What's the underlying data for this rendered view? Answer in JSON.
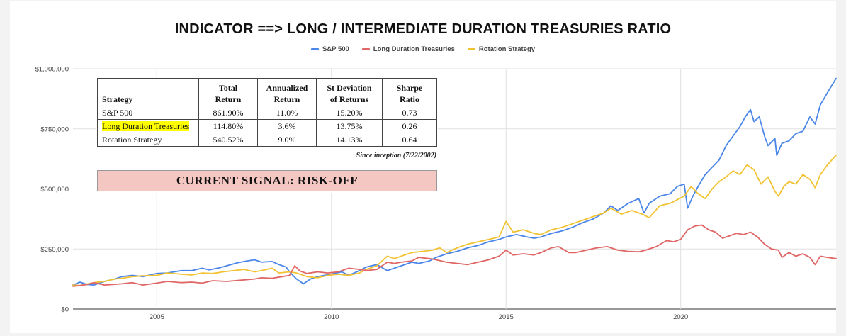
{
  "chart_data": {
    "type": "line",
    "title": "INDICATOR ==> LONG / INTERMEDIATE DURATION TREASURIES RATIO",
    "xlabel": "",
    "ylabel": "",
    "xlim": [
      2002.6,
      2024.45
    ],
    "ylim": [
      0,
      1000000
    ],
    "x_ticks": [
      2005,
      2010,
      2015,
      2020
    ],
    "y_ticks": [
      0,
      250000,
      500000,
      750000,
      1000000
    ],
    "y_tick_labels": [
      "$0",
      "$250,000",
      "$500,000",
      "$750,000",
      "$1,000,000"
    ],
    "grid": true,
    "legend_position": "top-center",
    "series": [
      {
        "name": "S&P 500",
        "color": "#4a86e8",
        "points": [
          [
            2002.6,
            100000
          ],
          [
            2002.8,
            112000
          ],
          [
            2003.0,
            102000
          ],
          [
            2003.2,
            100000
          ],
          [
            2003.5,
            115000
          ],
          [
            2003.8,
            125000
          ],
          [
            2004.0,
            135000
          ],
          [
            2004.3,
            140000
          ],
          [
            2004.6,
            135000
          ],
          [
            2005.0,
            148000
          ],
          [
            2005.3,
            150000
          ],
          [
            2005.7,
            160000
          ],
          [
            2006.0,
            160000
          ],
          [
            2006.3,
            170000
          ],
          [
            2006.5,
            163000
          ],
          [
            2006.8,
            172000
          ],
          [
            2007.0,
            180000
          ],
          [
            2007.3,
            192000
          ],
          [
            2007.5,
            198000
          ],
          [
            2007.8,
            205000
          ],
          [
            2008.0,
            195000
          ],
          [
            2008.3,
            198000
          ],
          [
            2008.5,
            185000
          ],
          [
            2008.7,
            175000
          ],
          [
            2008.8,
            155000
          ],
          [
            2009.0,
            125000
          ],
          [
            2009.2,
            105000
          ],
          [
            2009.4,
            125000
          ],
          [
            2009.6,
            135000
          ],
          [
            2009.8,
            140000
          ],
          [
            2010.0,
            145000
          ],
          [
            2010.3,
            155000
          ],
          [
            2010.5,
            140000
          ],
          [
            2010.8,
            160000
          ],
          [
            2011.0,
            175000
          ],
          [
            2011.3,
            185000
          ],
          [
            2011.6,
            160000
          ],
          [
            2011.8,
            170000
          ],
          [
            2012.0,
            180000
          ],
          [
            2012.3,
            195000
          ],
          [
            2012.5,
            190000
          ],
          [
            2012.8,
            200000
          ],
          [
            2013.0,
            215000
          ],
          [
            2013.3,
            230000
          ],
          [
            2013.6,
            240000
          ],
          [
            2013.9,
            255000
          ],
          [
            2014.2,
            265000
          ],
          [
            2014.5,
            280000
          ],
          [
            2014.8,
            290000
          ],
          [
            2015.0,
            300000
          ],
          [
            2015.3,
            310000
          ],
          [
            2015.6,
            300000
          ],
          [
            2015.8,
            295000
          ],
          [
            2016.0,
            300000
          ],
          [
            2016.3,
            315000
          ],
          [
            2016.6,
            325000
          ],
          [
            2016.9,
            340000
          ],
          [
            2017.2,
            360000
          ],
          [
            2017.5,
            375000
          ],
          [
            2017.8,
            400000
          ],
          [
            2018.0,
            430000
          ],
          [
            2018.2,
            410000
          ],
          [
            2018.5,
            440000
          ],
          [
            2018.8,
            460000
          ],
          [
            2018.95,
            400000
          ],
          [
            2019.1,
            440000
          ],
          [
            2019.4,
            470000
          ],
          [
            2019.7,
            480000
          ],
          [
            2019.9,
            510000
          ],
          [
            2020.1,
            520000
          ],
          [
            2020.2,
            420000
          ],
          [
            2020.35,
            470000
          ],
          [
            2020.5,
            510000
          ],
          [
            2020.7,
            560000
          ],
          [
            2020.9,
            590000
          ],
          [
            2021.1,
            620000
          ],
          [
            2021.3,
            680000
          ],
          [
            2021.5,
            720000
          ],
          [
            2021.7,
            760000
          ],
          [
            2021.85,
            800000
          ],
          [
            2022.0,
            830000
          ],
          [
            2022.1,
            780000
          ],
          [
            2022.25,
            800000
          ],
          [
            2022.4,
            720000
          ],
          [
            2022.5,
            680000
          ],
          [
            2022.7,
            710000
          ],
          [
            2022.75,
            640000
          ],
          [
            2022.9,
            690000
          ],
          [
            2023.1,
            700000
          ],
          [
            2023.3,
            730000
          ],
          [
            2023.5,
            740000
          ],
          [
            2023.7,
            800000
          ],
          [
            2023.85,
            770000
          ],
          [
            2024.0,
            850000
          ],
          [
            2024.2,
            900000
          ],
          [
            2024.45,
            960000
          ]
        ]
      },
      {
        "name": "Long Duration Treasuries",
        "color": "#e06666",
        "points": [
          [
            2002.6,
            95000
          ],
          [
            2002.8,
            98000
          ],
          [
            2003.0,
            102000
          ],
          [
            2003.2,
            110000
          ],
          [
            2003.5,
            100000
          ],
          [
            2003.8,
            103000
          ],
          [
            2004.0,
            105000
          ],
          [
            2004.3,
            110000
          ],
          [
            2004.6,
            100000
          ],
          [
            2005.0,
            108000
          ],
          [
            2005.3,
            115000
          ],
          [
            2005.7,
            110000
          ],
          [
            2006.0,
            112000
          ],
          [
            2006.3,
            108000
          ],
          [
            2006.6,
            118000
          ],
          [
            2007.0,
            115000
          ],
          [
            2007.4,
            120000
          ],
          [
            2007.8,
            125000
          ],
          [
            2008.0,
            130000
          ],
          [
            2008.3,
            128000
          ],
          [
            2008.6,
            135000
          ],
          [
            2008.8,
            140000
          ],
          [
            2008.95,
            180000
          ],
          [
            2009.1,
            158000
          ],
          [
            2009.3,
            148000
          ],
          [
            2009.6,
            155000
          ],
          [
            2009.9,
            150000
          ],
          [
            2010.2,
            155000
          ],
          [
            2010.5,
            170000
          ],
          [
            2010.8,
            165000
          ],
          [
            2011.0,
            160000
          ],
          [
            2011.3,
            165000
          ],
          [
            2011.6,
            195000
          ],
          [
            2011.8,
            190000
          ],
          [
            2012.0,
            195000
          ],
          [
            2012.3,
            200000
          ],
          [
            2012.5,
            215000
          ],
          [
            2012.8,
            210000
          ],
          [
            2013.0,
            205000
          ],
          [
            2013.3,
            195000
          ],
          [
            2013.6,
            190000
          ],
          [
            2013.9,
            185000
          ],
          [
            2014.2,
            195000
          ],
          [
            2014.5,
            205000
          ],
          [
            2014.8,
            220000
          ],
          [
            2015.0,
            245000
          ],
          [
            2015.2,
            225000
          ],
          [
            2015.5,
            230000
          ],
          [
            2015.8,
            225000
          ],
          [
            2016.0,
            235000
          ],
          [
            2016.3,
            255000
          ],
          [
            2016.5,
            260000
          ],
          [
            2016.8,
            235000
          ],
          [
            2017.0,
            235000
          ],
          [
            2017.3,
            245000
          ],
          [
            2017.6,
            255000
          ],
          [
            2017.9,
            260000
          ],
          [
            2018.2,
            245000
          ],
          [
            2018.5,
            240000
          ],
          [
            2018.8,
            238000
          ],
          [
            2019.0,
            245000
          ],
          [
            2019.3,
            260000
          ],
          [
            2019.6,
            285000
          ],
          [
            2019.8,
            280000
          ],
          [
            2020.0,
            290000
          ],
          [
            2020.2,
            330000
          ],
          [
            2020.4,
            345000
          ],
          [
            2020.6,
            350000
          ],
          [
            2020.8,
            330000
          ],
          [
            2021.0,
            320000
          ],
          [
            2021.2,
            295000
          ],
          [
            2021.4,
            305000
          ],
          [
            2021.6,
            315000
          ],
          [
            2021.8,
            310000
          ],
          [
            2022.0,
            320000
          ],
          [
            2022.2,
            300000
          ],
          [
            2022.4,
            270000
          ],
          [
            2022.6,
            250000
          ],
          [
            2022.8,
            245000
          ],
          [
            2022.9,
            215000
          ],
          [
            2023.1,
            235000
          ],
          [
            2023.3,
            220000
          ],
          [
            2023.5,
            230000
          ],
          [
            2023.7,
            215000
          ],
          [
            2023.85,
            185000
          ],
          [
            2024.0,
            220000
          ],
          [
            2024.2,
            215000
          ],
          [
            2024.45,
            210000
          ]
        ]
      },
      {
        "name": "Rotation Strategy",
        "color": "#f1c232",
        "points": [
          [
            2002.6,
            100000
          ],
          [
            2002.8,
            98000
          ],
          [
            2003.0,
            104000
          ],
          [
            2003.2,
            110000
          ],
          [
            2003.5,
            115000
          ],
          [
            2003.8,
            125000
          ],
          [
            2004.0,
            128000
          ],
          [
            2004.3,
            135000
          ],
          [
            2004.6,
            138000
          ],
          [
            2005.0,
            140000
          ],
          [
            2005.3,
            150000
          ],
          [
            2005.7,
            145000
          ],
          [
            2006.0,
            142000
          ],
          [
            2006.3,
            150000
          ],
          [
            2006.6,
            148000
          ],
          [
            2006.9,
            155000
          ],
          [
            2007.2,
            160000
          ],
          [
            2007.5,
            165000
          ],
          [
            2007.8,
            155000
          ],
          [
            2008.0,
            160000
          ],
          [
            2008.3,
            170000
          ],
          [
            2008.5,
            150000
          ],
          [
            2008.8,
            155000
          ],
          [
            2009.0,
            150000
          ],
          [
            2009.3,
            135000
          ],
          [
            2009.6,
            130000
          ],
          [
            2009.9,
            140000
          ],
          [
            2010.2,
            145000
          ],
          [
            2010.5,
            140000
          ],
          [
            2010.8,
            150000
          ],
          [
            2011.0,
            165000
          ],
          [
            2011.3,
            180000
          ],
          [
            2011.6,
            220000
          ],
          [
            2011.8,
            210000
          ],
          [
            2012.0,
            220000
          ],
          [
            2012.3,
            235000
          ],
          [
            2012.6,
            240000
          ],
          [
            2012.9,
            245000
          ],
          [
            2013.1,
            255000
          ],
          [
            2013.3,
            235000
          ],
          [
            2013.6,
            255000
          ],
          [
            2013.9,
            270000
          ],
          [
            2014.2,
            280000
          ],
          [
            2014.5,
            290000
          ],
          [
            2014.8,
            300000
          ],
          [
            2015.0,
            365000
          ],
          [
            2015.2,
            320000
          ],
          [
            2015.5,
            330000
          ],
          [
            2015.8,
            315000
          ],
          [
            2016.0,
            310000
          ],
          [
            2016.3,
            330000
          ],
          [
            2016.6,
            340000
          ],
          [
            2016.9,
            355000
          ],
          [
            2017.2,
            370000
          ],
          [
            2017.5,
            385000
          ],
          [
            2017.8,
            400000
          ],
          [
            2018.0,
            420000
          ],
          [
            2018.3,
            395000
          ],
          [
            2018.6,
            410000
          ],
          [
            2018.9,
            395000
          ],
          [
            2019.1,
            380000
          ],
          [
            2019.4,
            430000
          ],
          [
            2019.7,
            440000
          ],
          [
            2019.9,
            455000
          ],
          [
            2020.1,
            470000
          ],
          [
            2020.3,
            510000
          ],
          [
            2020.5,
            480000
          ],
          [
            2020.7,
            460000
          ],
          [
            2020.9,
            500000
          ],
          [
            2021.1,
            530000
          ],
          [
            2021.3,
            550000
          ],
          [
            2021.5,
            575000
          ],
          [
            2021.7,
            560000
          ],
          [
            2021.9,
            600000
          ],
          [
            2022.1,
            580000
          ],
          [
            2022.3,
            520000
          ],
          [
            2022.5,
            550000
          ],
          [
            2022.7,
            490000
          ],
          [
            2022.8,
            470000
          ],
          [
            2022.95,
            510000
          ],
          [
            2023.1,
            530000
          ],
          [
            2023.3,
            520000
          ],
          [
            2023.5,
            560000
          ],
          [
            2023.7,
            540000
          ],
          [
            2023.85,
            505000
          ],
          [
            2024.0,
            560000
          ],
          [
            2024.2,
            600000
          ],
          [
            2024.45,
            640000
          ]
        ]
      }
    ]
  },
  "stats_table": {
    "headers": {
      "strategy": "Strategy",
      "total_return_1": "Total",
      "total_return_2": "Return",
      "annualized_1": "Annualized",
      "annualized_2": "Return",
      "stdev_1": "St Deviation",
      "stdev_2": "of Returns",
      "sharpe_1": "Sharpe",
      "sharpe_2": "Ratio"
    },
    "rows": [
      {
        "strategy": "S&P 500",
        "total_return": "861.90%",
        "annualized_return": "11.0%",
        "st_deviation": "15.20%",
        "sharpe_ratio": "0.73"
      },
      {
        "strategy": "Long Duration Treasuries",
        "total_return": "114.80%",
        "annualized_return": "3.6%",
        "st_deviation": "13.75%",
        "sharpe_ratio": "0.26"
      },
      {
        "strategy": "Rotation Strategy",
        "total_return": "540.52%",
        "annualized_return": "9.0%",
        "st_deviation": "14.13%",
        "sharpe_ratio": "0.64"
      }
    ],
    "since_note": "Since inception (7/22/2002)"
  },
  "signal": {
    "text": "CURRENT SIGNAL: RISK-OFF",
    "color": "#f4c7c3"
  }
}
